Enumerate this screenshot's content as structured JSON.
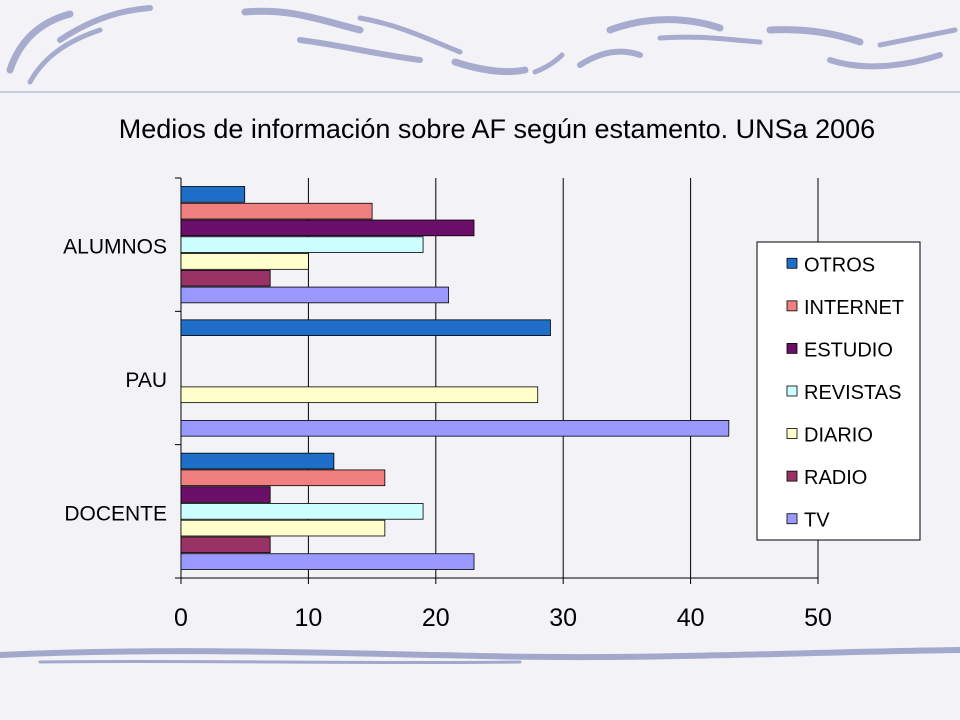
{
  "slide": {
    "theme_colors": {
      "stroke": "#9aa0c8",
      "stroke_dark": "#7f86b5",
      "background": "#f3f3f7"
    }
  },
  "chart_data": {
    "type": "bar",
    "orientation": "horizontal",
    "title": "Medios de información sobre AF según estamento. UNSa 2006",
    "xlabel": "",
    "ylabel": "",
    "categories": [
      "ALUMNOS",
      "PAU",
      "DOCENTE"
    ],
    "xlim": [
      0,
      50
    ],
    "xticks": [
      "0",
      "10",
      "20",
      "30",
      "40",
      "50"
    ],
    "grid": "vertical",
    "legend_position": "right",
    "series": [
      {
        "name": "OTROS",
        "color": "#1f6fc8",
        "values": [
          5,
          29,
          12
        ]
      },
      {
        "name": "INTERNET",
        "color": "#f08080",
        "values": [
          15,
          0,
          16
        ]
      },
      {
        "name": "ESTUDIO",
        "color": "#6b0f6b",
        "values": [
          23,
          0,
          7
        ]
      },
      {
        "name": "REVISTAS",
        "color": "#ccffff",
        "values": [
          19,
          0,
          19
        ]
      },
      {
        "name": "DIARIO",
        "color": "#ffffcc",
        "values": [
          10,
          28,
          16
        ]
      },
      {
        "name": "RADIO",
        "color": "#993366",
        "values": [
          7,
          0,
          7
        ]
      },
      {
        "name": "TV",
        "color": "#9999ff",
        "values": [
          21,
          43,
          23
        ]
      }
    ]
  }
}
